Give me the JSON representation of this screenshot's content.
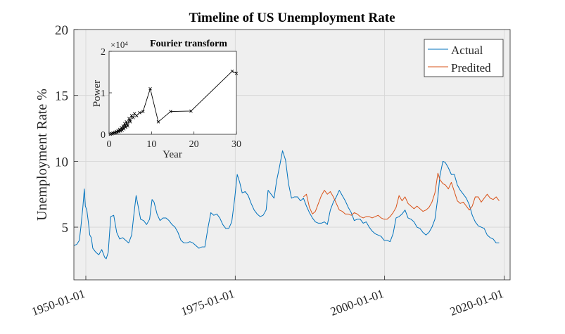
{
  "chart_data": [
    {
      "type": "line",
      "title": "Timeline of US Unemployment Rate",
      "xlabel": "",
      "ylabel": "Unemployment Rate  %",
      "xlim": [
        "1948-01-01",
        "2021-01-01"
      ],
      "ylim": [
        1,
        20
      ],
      "yticks": [
        5,
        10,
        15,
        20
      ],
      "xticks": [
        "1950-01-01",
        "1975-01-01",
        "2000-01-01",
        "2020-01-01"
      ],
      "grid": true,
      "background": "#efefef",
      "legend": "top-right",
      "series": [
        {
          "name": "Actual",
          "color": "#0072bd",
          "points": [
            [
              "1948-01-01",
              3.6
            ],
            [
              "1948-07-01",
              3.7
            ],
            [
              "1948-12-01",
              4.0
            ],
            [
              "1949-03-01",
              5.0
            ],
            [
              "1949-07-01",
              6.5
            ],
            [
              "1949-10-01",
              7.9
            ],
            [
              "1949-12-01",
              6.6
            ],
            [
              "1950-03-01",
              6.3
            ],
            [
              "1950-06-01",
              5.4
            ],
            [
              "1950-09-01",
              4.4
            ],
            [
              "1950-12-01",
              4.2
            ],
            [
              "1951-03-01",
              3.4
            ],
            [
              "1951-09-01",
              3.1
            ],
            [
              "1952-03-01",
              2.9
            ],
            [
              "1952-09-01",
              3.3
            ],
            [
              "1953-03-01",
              2.7
            ],
            [
              "1953-06-01",
              2.6
            ],
            [
              "1953-10-01",
              3.1
            ],
            [
              "1954-03-01",
              5.8
            ],
            [
              "1954-09-01",
              5.9
            ],
            [
              "1955-03-01",
              4.6
            ],
            [
              "1955-09-01",
              4.1
            ],
            [
              "1956-03-01",
              4.2
            ],
            [
              "1956-09-01",
              4.0
            ],
            [
              "1957-03-01",
              3.8
            ],
            [
              "1957-09-01",
              4.4
            ],
            [
              "1958-01-01",
              5.8
            ],
            [
              "1958-06-01",
              7.4
            ],
            [
              "1958-10-01",
              6.6
            ],
            [
              "1959-03-01",
              5.6
            ],
            [
              "1959-09-01",
              5.5
            ],
            [
              "1960-03-01",
              5.2
            ],
            [
              "1960-09-01",
              5.6
            ],
            [
              "1961-02-01",
              7.1
            ],
            [
              "1961-06-01",
              6.9
            ],
            [
              "1961-12-01",
              6.0
            ],
            [
              "1962-06-01",
              5.5
            ],
            [
              "1962-12-01",
              5.7
            ],
            [
              "1963-06-01",
              5.7
            ],
            [
              "1963-12-01",
              5.5
            ],
            [
              "1964-06-01",
              5.2
            ],
            [
              "1964-12-01",
              5.0
            ],
            [
              "1965-06-01",
              4.6
            ],
            [
              "1965-12-01",
              4.0
            ],
            [
              "1966-06-01",
              3.8
            ],
            [
              "1966-12-01",
              3.8
            ],
            [
              "1967-06-01",
              3.9
            ],
            [
              "1967-12-01",
              3.8
            ],
            [
              "1968-06-01",
              3.6
            ],
            [
              "1968-12-01",
              3.4
            ],
            [
              "1969-06-01",
              3.5
            ],
            [
              "1969-12-01",
              3.5
            ],
            [
              "1970-06-01",
              4.9
            ],
            [
              "1970-12-01",
              6.1
            ],
            [
              "1971-06-01",
              5.9
            ],
            [
              "1971-12-01",
              6.0
            ],
            [
              "1972-06-01",
              5.7
            ],
            [
              "1972-12-01",
              5.2
            ],
            [
              "1973-06-01",
              4.9
            ],
            [
              "1973-12-01",
              4.9
            ],
            [
              "1974-06-01",
              5.4
            ],
            [
              "1974-12-01",
              7.2
            ],
            [
              "1975-05-01",
              9.0
            ],
            [
              "1975-10-01",
              8.4
            ],
            [
              "1976-03-01",
              7.6
            ],
            [
              "1976-09-01",
              7.7
            ],
            [
              "1977-03-01",
              7.4
            ],
            [
              "1977-09-01",
              6.8
            ],
            [
              "1978-03-01",
              6.3
            ],
            [
              "1978-09-01",
              6.0
            ],
            [
              "1979-03-01",
              5.8
            ],
            [
              "1979-09-01",
              5.9
            ],
            [
              "1980-03-01",
              6.3
            ],
            [
              "1980-07-01",
              7.8
            ],
            [
              "1981-01-01",
              7.5
            ],
            [
              "1981-07-01",
              7.2
            ],
            [
              "1981-12-01",
              8.5
            ],
            [
              "1982-06-01",
              9.6
            ],
            [
              "1982-12-01",
              10.8
            ],
            [
              "1983-06-01",
              10.1
            ],
            [
              "1983-12-01",
              8.3
            ],
            [
              "1984-06-01",
              7.2
            ],
            [
              "1984-12-01",
              7.3
            ],
            [
              "1985-06-01",
              7.3
            ],
            [
              "1985-12-01",
              7.0
            ],
            [
              "1986-06-01",
              7.2
            ],
            [
              "1986-12-01",
              6.6
            ],
            [
              "1987-06-01",
              6.1
            ],
            [
              "1987-12-01",
              5.7
            ],
            [
              "1988-06-01",
              5.4
            ],
            [
              "1988-12-01",
              5.3
            ],
            [
              "1989-06-01",
              5.3
            ],
            [
              "1989-12-01",
              5.4
            ],
            [
              "1990-06-01",
              5.2
            ],
            [
              "1990-12-01",
              6.3
            ],
            [
              "1991-06-01",
              6.9
            ],
            [
              "1991-12-01",
              7.3
            ],
            [
              "1992-06-01",
              7.8
            ],
            [
              "1992-12-01",
              7.4
            ],
            [
              "1993-06-01",
              7.0
            ],
            [
              "1993-12-01",
              6.5
            ],
            [
              "1994-06-01",
              6.1
            ],
            [
              "1994-12-01",
              5.5
            ],
            [
              "1995-06-01",
              5.6
            ],
            [
              "1995-12-01",
              5.6
            ],
            [
              "1996-06-01",
              5.3
            ],
            [
              "1996-12-01",
              5.4
            ],
            [
              "1997-06-01",
              5.0
            ],
            [
              "1997-12-01",
              4.7
            ],
            [
              "1998-06-01",
              4.5
            ],
            [
              "1998-12-01",
              4.4
            ],
            [
              "1999-06-01",
              4.3
            ],
            [
              "1999-12-01",
              4.0
            ],
            [
              "2000-06-01",
              4.0
            ],
            [
              "2000-12-01",
              3.9
            ],
            [
              "2001-06-01",
              4.5
            ],
            [
              "2001-12-01",
              5.7
            ],
            [
              "2002-06-01",
              5.8
            ],
            [
              "2002-12-01",
              6.0
            ],
            [
              "2003-06-01",
              6.3
            ],
            [
              "2003-12-01",
              5.7
            ],
            [
              "2004-06-01",
              5.6
            ],
            [
              "2004-12-01",
              5.4
            ],
            [
              "2005-06-01",
              5.0
            ],
            [
              "2005-12-01",
              4.9
            ],
            [
              "2006-06-01",
              4.6
            ],
            [
              "2006-12-01",
              4.4
            ],
            [
              "2007-06-01",
              4.6
            ],
            [
              "2007-12-01",
              5.0
            ],
            [
              "2008-06-01",
              5.6
            ],
            [
              "2008-12-01",
              7.3
            ],
            [
              "2009-04-01",
              8.9
            ],
            [
              "2009-10-01",
              10.0
            ],
            [
              "2010-03-01",
              9.9
            ],
            [
              "2010-09-01",
              9.5
            ],
            [
              "2011-03-01",
              9.0
            ],
            [
              "2011-09-01",
              9.0
            ],
            [
              "2012-03-01",
              8.2
            ],
            [
              "2012-09-01",
              7.8
            ],
            [
              "2013-03-01",
              7.5
            ],
            [
              "2013-09-01",
              7.2
            ],
            [
              "2014-03-01",
              6.7
            ],
            [
              "2014-09-01",
              5.9
            ],
            [
              "2015-03-01",
              5.4
            ],
            [
              "2015-09-01",
              5.1
            ],
            [
              "2016-03-01",
              5.0
            ],
            [
              "2016-09-01",
              4.9
            ],
            [
              "2017-03-01",
              4.4
            ],
            [
              "2017-09-01",
              4.2
            ],
            [
              "2018-03-01",
              4.1
            ],
            [
              "2018-09-01",
              3.8
            ],
            [
              "2019-03-01",
              3.8
            ]
          ]
        },
        {
          "name": "Predited",
          "color": "#d95319",
          "points": [
            [
              "1986-06-01",
              7.3
            ],
            [
              "1986-12-01",
              7.5
            ],
            [
              "1987-06-01",
              6.5
            ],
            [
              "1987-12-01",
              6.0
            ],
            [
              "1988-06-01",
              6.2
            ],
            [
              "1988-12-01",
              6.8
            ],
            [
              "1989-06-01",
              7.4
            ],
            [
              "1989-12-01",
              7.8
            ],
            [
              "1990-06-01",
              7.5
            ],
            [
              "1990-12-01",
              7.7
            ],
            [
              "1991-06-01",
              7.3
            ],
            [
              "1991-12-01",
              6.8
            ],
            [
              "1992-06-01",
              6.3
            ],
            [
              "1992-12-01",
              6.2
            ],
            [
              "1993-06-01",
              6.0
            ],
            [
              "1993-12-01",
              6.0
            ],
            [
              "1994-06-01",
              5.9
            ],
            [
              "1994-12-01",
              6.1
            ],
            [
              "1995-06-01",
              6.0
            ],
            [
              "1995-12-01",
              5.8
            ],
            [
              "1996-06-01",
              5.7
            ],
            [
              "1996-12-01",
              5.8
            ],
            [
              "1997-06-01",
              5.8
            ],
            [
              "1997-12-01",
              5.7
            ],
            [
              "1998-06-01",
              5.8
            ],
            [
              "1998-12-01",
              5.9
            ],
            [
              "1999-06-01",
              5.7
            ],
            [
              "1999-12-01",
              5.6
            ],
            [
              "2000-06-01",
              5.6
            ],
            [
              "2000-12-01",
              5.8
            ],
            [
              "2001-06-01",
              6.1
            ],
            [
              "2001-12-01",
              6.5
            ],
            [
              "2002-06-01",
              7.4
            ],
            [
              "2002-12-01",
              7.0
            ],
            [
              "2003-06-01",
              7.3
            ],
            [
              "2003-12-01",
              6.8
            ],
            [
              "2004-06-01",
              6.6
            ],
            [
              "2004-12-01",
              6.4
            ],
            [
              "2005-06-01",
              6.6
            ],
            [
              "2005-12-01",
              6.4
            ],
            [
              "2006-06-01",
              6.2
            ],
            [
              "2006-12-01",
              6.3
            ],
            [
              "2007-06-01",
              6.5
            ],
            [
              "2007-12-01",
              6.9
            ],
            [
              "2008-06-01",
              7.6
            ],
            [
              "2008-12-01",
              9.1
            ],
            [
              "2009-04-01",
              8.6
            ],
            [
              "2009-10-01",
              8.3
            ],
            [
              "2010-03-01",
              8.2
            ],
            [
              "2010-09-01",
              7.9
            ],
            [
              "2011-03-01",
              8.4
            ],
            [
              "2011-09-01",
              7.7
            ],
            [
              "2012-03-01",
              7.0
            ],
            [
              "2012-09-01",
              6.8
            ],
            [
              "2013-03-01",
              6.9
            ],
            [
              "2013-09-01",
              6.6
            ],
            [
              "2014-03-01",
              6.3
            ],
            [
              "2014-09-01",
              6.6
            ],
            [
              "2015-03-01",
              7.3
            ],
            [
              "2015-09-01",
              7.3
            ],
            [
              "2016-03-01",
              6.9
            ],
            [
              "2016-09-01",
              7.2
            ],
            [
              "2017-03-01",
              7.5
            ],
            [
              "2017-09-01",
              7.2
            ],
            [
              "2018-03-01",
              7.1
            ],
            [
              "2018-09-01",
              7.3
            ],
            [
              "2019-03-01",
              7.0
            ]
          ]
        }
      ]
    },
    {
      "type": "line",
      "title": "Fourier transform",
      "xlabel": "Year",
      "ylabel": "Power",
      "exponent_label": "×10⁴",
      "xlim": [
        0,
        30
      ],
      "ylim": [
        0,
        2
      ],
      "xticks": [
        0,
        10,
        20,
        30
      ],
      "yticks": [
        0,
        1,
        2
      ],
      "grid": false,
      "color": "#000000",
      "marker": "x",
      "points": [
        [
          0.3,
          0.0
        ],
        [
          0.5,
          0.02
        ],
        [
          0.7,
          0.01
        ],
        [
          0.9,
          0.03
        ],
        [
          1.1,
          0.02
        ],
        [
          1.3,
          0.05
        ],
        [
          1.5,
          0.03
        ],
        [
          1.7,
          0.07
        ],
        [
          1.9,
          0.04
        ],
        [
          2.1,
          0.09
        ],
        [
          2.3,
          0.06
        ],
        [
          2.5,
          0.12
        ],
        [
          2.7,
          0.08
        ],
        [
          2.9,
          0.16
        ],
        [
          3.1,
          0.1
        ],
        [
          3.3,
          0.2
        ],
        [
          3.5,
          0.13
        ],
        [
          3.7,
          0.26
        ],
        [
          3.9,
          0.17
        ],
        [
          4.1,
          0.3
        ],
        [
          4.4,
          0.2
        ],
        [
          4.7,
          0.38
        ],
        [
          5.0,
          0.3
        ],
        [
          5.3,
          0.45
        ],
        [
          5.7,
          0.4
        ],
        [
          6.0,
          0.5
        ],
        [
          6.5,
          0.45
        ],
        [
          7.2,
          0.52
        ],
        [
          8.0,
          0.55
        ],
        [
          9.7,
          1.1
        ],
        [
          11.6,
          0.3
        ],
        [
          14.5,
          0.55
        ],
        [
          19.3,
          0.56
        ],
        [
          29.0,
          1.52
        ],
        [
          30.0,
          1.47
        ]
      ]
    }
  ]
}
